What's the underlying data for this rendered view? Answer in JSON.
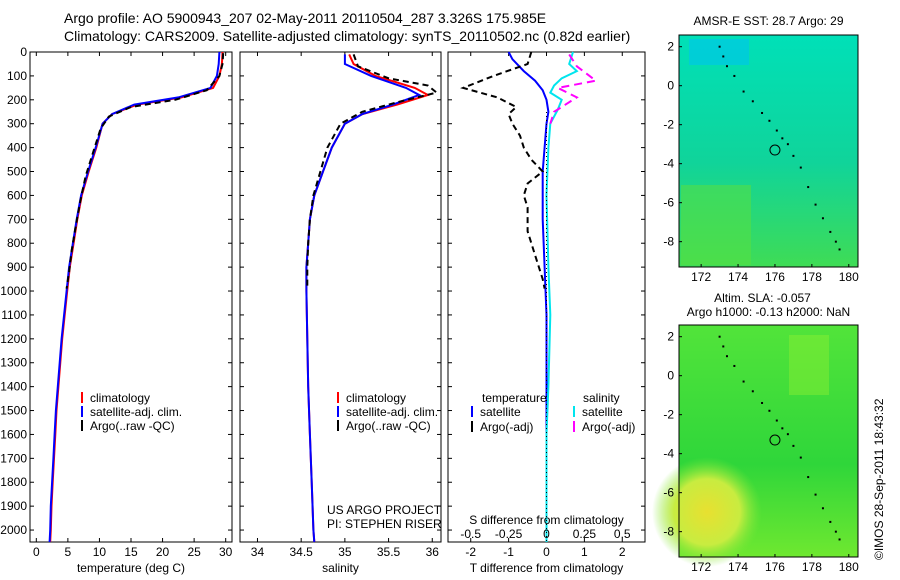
{
  "header": {
    "line1": "Argo profile: AO 5900943_207 02-May-2011 20110504_287 3.326S 175.985E",
    "line2": "Climatology: CARS2009. Satellite-adjusted climatology: synTS_20110502.nc (0.82d earlier)"
  },
  "side_label": "©IMOS 28-Sep-2011 18:43:32",
  "colors": {
    "climatology": "#ff0000",
    "satellite": "#0000ff",
    "argo": "#000000",
    "salinity_sat": "#00e5ee",
    "salinity_argo": "#ff00ff"
  },
  "chart_data": [
    {
      "type": "line",
      "id": "temperature",
      "xlabel": "temperature (deg C)",
      "xlim": [
        -1,
        31
      ],
      "xticks": [
        0,
        5,
        10,
        15,
        20,
        25,
        30
      ],
      "ylim": [
        2050,
        0
      ],
      "yticks": [
        0,
        100,
        200,
        300,
        400,
        500,
        600,
        700,
        800,
        900,
        1000,
        1100,
        1200,
        1300,
        1400,
        1500,
        1600,
        1700,
        1800,
        1900,
        2000
      ],
      "legend": [
        "climatology",
        "satellite-adj. clim.",
        "Argo(..raw -QC)"
      ],
      "series": [
        {
          "name": "climatology",
          "color": "#ff0000",
          "points": [
            [
              29.5,
              0
            ],
            [
              29.4,
              50
            ],
            [
              29.0,
              100
            ],
            [
              28.0,
              150
            ],
            [
              23,
              190
            ],
            [
              16,
              220
            ],
            [
              12,
              260
            ],
            [
              10.5,
              300
            ],
            [
              9.5,
              400
            ],
            [
              8.3,
              500
            ],
            [
              7.2,
              600
            ],
            [
              6.5,
              700
            ],
            [
              5.9,
              800
            ],
            [
              5.3,
              900
            ],
            [
              4.9,
              1000
            ],
            [
              4.5,
              1100
            ],
            [
              4.1,
              1200
            ],
            [
              3.8,
              1300
            ],
            [
              3.5,
              1400
            ],
            [
              3.2,
              1500
            ],
            [
              3.0,
              1600
            ],
            [
              2.8,
              1700
            ],
            [
              2.6,
              1800
            ],
            [
              2.4,
              1900
            ],
            [
              2.3,
              2000
            ],
            [
              2.2,
              2050
            ]
          ]
        },
        {
          "name": "satellite-adj. clim.",
          "color": "#0000ff",
          "points": [
            [
              29.0,
              0
            ],
            [
              28.9,
              50
            ],
            [
              28.6,
              100
            ],
            [
              27.6,
              150
            ],
            [
              22.5,
              190
            ],
            [
              15.5,
              220
            ],
            [
              12,
              260
            ],
            [
              10.5,
              300
            ],
            [
              9.4,
              400
            ],
            [
              8.2,
              500
            ],
            [
              7.1,
              600
            ],
            [
              6.4,
              700
            ],
            [
              5.8,
              800
            ],
            [
              5.2,
              900
            ],
            [
              4.8,
              1000
            ],
            [
              4.4,
              1100
            ],
            [
              4.0,
              1200
            ],
            [
              3.7,
              1300
            ],
            [
              3.4,
              1400
            ],
            [
              3.1,
              1500
            ],
            [
              2.9,
              1600
            ],
            [
              2.7,
              1700
            ],
            [
              2.5,
              1800
            ],
            [
              2.3,
              1900
            ],
            [
              2.2,
              2000
            ],
            [
              2.1,
              2050
            ]
          ]
        },
        {
          "name": "Argo(..raw -QC)",
          "color": "#000000",
          "dash": "6,4",
          "points": [
            [
              29.6,
              5
            ],
            [
              29.5,
              50
            ],
            [
              29.0,
              100
            ],
            [
              27.0,
              160
            ],
            [
              22,
              200
            ],
            [
              15,
              230
            ],
            [
              11.5,
              270
            ],
            [
              10.2,
              320
            ],
            [
              9.0,
              420
            ],
            [
              7.8,
              520
            ],
            [
              7.0,
              620
            ],
            [
              6.3,
              720
            ],
            [
              5.6,
              830
            ],
            [
              5.2,
              920
            ],
            [
              4.8,
              990
            ]
          ]
        }
      ]
    },
    {
      "type": "line",
      "id": "salinity",
      "xlabel": "salinity",
      "xlim": [
        33.8,
        36.1
      ],
      "xticks": [
        34,
        34.5,
        35,
        35.5,
        36
      ],
      "ylim": [
        2050,
        0
      ],
      "legend": [
        "climatology",
        "satellite-adj. clim.",
        "Argo(..raw -QC)"
      ],
      "annotation": [
        "US ARGO PROJECT",
        "PI: STEPHEN RISER"
      ],
      "series": [
        {
          "name": "climatology",
          "color": "#ff0000",
          "points": [
            [
              35.05,
              10
            ],
            [
              35.1,
              50
            ],
            [
              35.35,
              100
            ],
            [
              35.8,
              150
            ],
            [
              35.95,
              180
            ],
            [
              35.6,
              220
            ],
            [
              35.2,
              260
            ],
            [
              35.0,
              300
            ],
            [
              34.85,
              400
            ],
            [
              34.75,
              500
            ],
            [
              34.65,
              600
            ],
            [
              34.6,
              700
            ],
            [
              34.58,
              800
            ],
            [
              34.56,
              900
            ],
            [
              34.56,
              1000
            ],
            [
              34.57,
              1200
            ],
            [
              34.58,
              1400
            ],
            [
              34.6,
              1600
            ],
            [
              34.62,
              1800
            ],
            [
              34.64,
              2000
            ],
            [
              34.65,
              2050
            ]
          ]
        },
        {
          "name": "satellite-adj. clim.",
          "color": "#0000ff",
          "points": [
            [
              35.0,
              10
            ],
            [
              35.0,
              50
            ],
            [
              35.3,
              100
            ],
            [
              35.7,
              150
            ],
            [
              35.85,
              180
            ],
            [
              35.55,
              220
            ],
            [
              35.2,
              260
            ],
            [
              35.0,
              300
            ],
            [
              34.85,
              400
            ],
            [
              34.75,
              500
            ],
            [
              34.65,
              600
            ],
            [
              34.6,
              700
            ],
            [
              34.58,
              800
            ],
            [
              34.56,
              900
            ],
            [
              34.56,
              1000
            ],
            [
              34.57,
              1200
            ],
            [
              34.58,
              1400
            ],
            [
              34.6,
              1600
            ],
            [
              34.62,
              1800
            ],
            [
              34.64,
              2000
            ],
            [
              34.65,
              2050
            ]
          ]
        },
        {
          "name": "Argo(..raw -QC)",
          "color": "#000000",
          "dash": "6,4",
          "points": [
            [
              35.1,
              10
            ],
            [
              35.15,
              60
            ],
            [
              35.5,
              110
            ],
            [
              35.95,
              140
            ],
            [
              36.05,
              170
            ],
            [
              35.6,
              210
            ],
            [
              35.2,
              250
            ],
            [
              34.95,
              300
            ],
            [
              34.8,
              400
            ],
            [
              34.72,
              500
            ],
            [
              34.64,
              600
            ],
            [
              34.6,
              700
            ],
            [
              34.58,
              800
            ],
            [
              34.57,
              900
            ],
            [
              34.57,
              990
            ]
          ]
        }
      ]
    },
    {
      "type": "line",
      "id": "difference",
      "xlabel": "T difference from climatology",
      "xlabel_top": "S difference from climatology",
      "xlim": [
        -2.6,
        2.6
      ],
      "xticks": [
        -2,
        -1,
        0,
        1,
        2
      ],
      "xticks_top": [
        "-0.5",
        "-0.25",
        "0",
        "0.25",
        "0.5"
      ],
      "ylim": [
        2050,
        0
      ],
      "legend_left_title": "temperature",
      "legend_right_title": "salinity",
      "legend_left": [
        "satellite",
        "Argo(-adj)"
      ],
      "legend_right": [
        "satellite",
        "Argo(-adj)"
      ],
      "series": [
        {
          "name": "T satellite",
          "color": "#0000ff",
          "points": [
            [
              -1.0,
              0
            ],
            [
              -0.9,
              30
            ],
            [
              -0.6,
              80
            ],
            [
              -0.3,
              120
            ],
            [
              -0.1,
              160
            ],
            [
              0.0,
              200
            ],
            [
              0.05,
              250
            ],
            [
              0.0,
              300
            ],
            [
              -0.05,
              400
            ],
            [
              -0.1,
              500
            ],
            [
              -0.1,
              700
            ],
            [
              -0.05,
              900
            ],
            [
              0,
              1100
            ],
            [
              0,
              1500
            ],
            [
              0,
              2050
            ]
          ]
        },
        {
          "name": "T Argo(-adj)",
          "color": "#000000",
          "dash": "6,4",
          "points": [
            [
              -0.4,
              0
            ],
            [
              -0.5,
              50
            ],
            [
              -1.4,
              100
            ],
            [
              -2.2,
              150
            ],
            [
              -1.3,
              190
            ],
            [
              -0.8,
              230
            ],
            [
              -1.0,
              260
            ],
            [
              -0.9,
              300
            ],
            [
              -0.7,
              350
            ],
            [
              -0.6,
              400
            ],
            [
              -0.4,
              450
            ],
            [
              -0.1,
              500
            ],
            [
              -0.5,
              550
            ],
            [
              -0.6,
              600
            ],
            [
              -0.5,
              650
            ],
            [
              -0.5,
              750
            ],
            [
              -0.3,
              850
            ],
            [
              -0.1,
              950
            ],
            [
              -0.05,
              990
            ]
          ]
        },
        {
          "name": "S satellite",
          "color": "#00e5ee",
          "points": [
            [
              0.7,
              0
            ],
            [
              0.6,
              50
            ],
            [
              0.8,
              80
            ],
            [
              0.4,
              110
            ],
            [
              0.2,
              140
            ],
            [
              0.1,
              170
            ],
            [
              0.4,
              200
            ],
            [
              0.3,
              240
            ],
            [
              0.1,
              300
            ],
            [
              0.05,
              400
            ],
            [
              0.0,
              600
            ],
            [
              0.05,
              900
            ],
            [
              0.1,
              1100
            ],
            [
              0.05,
              1400
            ],
            [
              0.0,
              1600
            ],
            [
              0.0,
              2050
            ]
          ]
        },
        {
          "name": "S Argo(-adj)",
          "color": "#ff00ff",
          "dash": "8,5",
          "points": [
            [
              0.6,
              10
            ],
            [
              0.8,
              60
            ],
            [
              1.3,
              120
            ],
            [
              0.3,
              150
            ],
            [
              0.8,
              190
            ],
            [
              0.2,
              250
            ],
            [
              0.1,
              300
            ]
          ]
        }
      ]
    }
  ],
  "maps": [
    {
      "id": "sst-map",
      "title": "AMSR-E SST: 28.7 Argo: 29",
      "xticks": [
        172,
        174,
        176,
        178,
        180
      ],
      "yticks": [
        2,
        0,
        -2,
        -4,
        -6,
        -8
      ],
      "xlim": [
        170.8,
        180.5
      ],
      "ylim": [
        -9.3,
        2.6
      ],
      "marker": [
        176.0,
        -3.3
      ]
    },
    {
      "id": "sla-map",
      "title_line1": "Altim. SLA: -0.057",
      "title_line2": "Argo h1000: -0.13 h2000: NaN",
      "xticks": [
        172,
        174,
        176,
        178,
        180
      ],
      "yticks": [
        2,
        0,
        -2,
        -4,
        -6,
        -8
      ],
      "xlim": [
        170.8,
        180.5
      ],
      "ylim": [
        -9.3,
        2.6
      ],
      "marker": [
        176.0,
        -3.3
      ]
    }
  ]
}
